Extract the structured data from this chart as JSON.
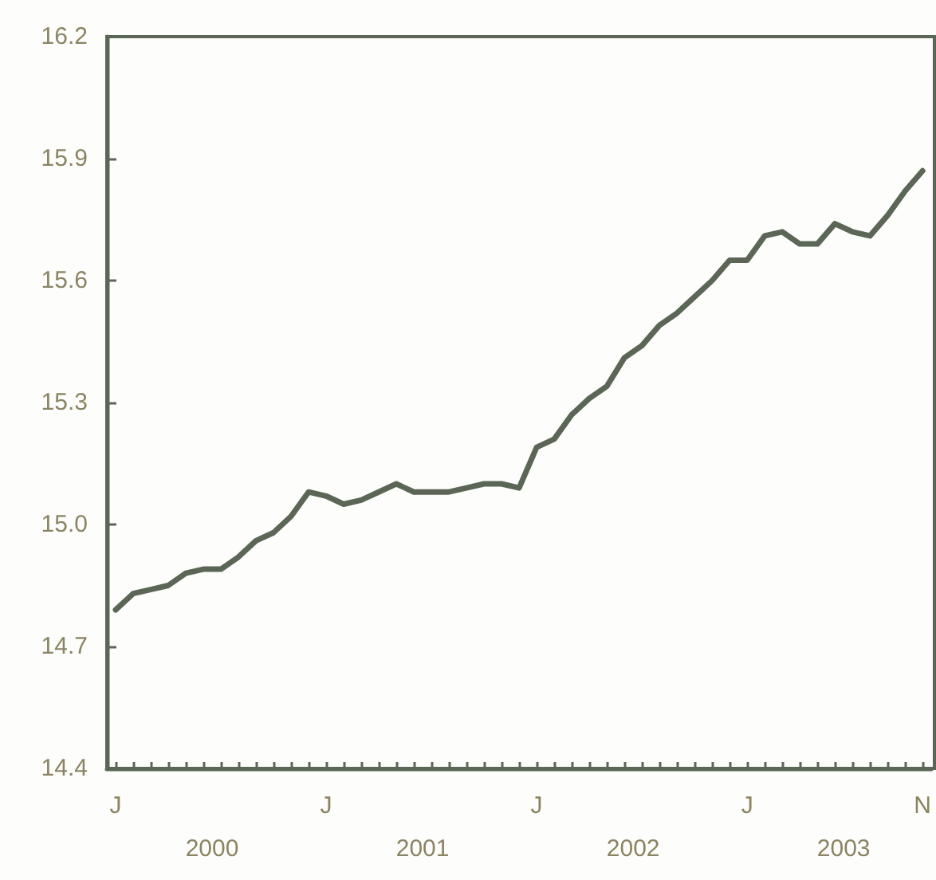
{
  "chart_data": {
    "type": "line",
    "categories": [
      "J",
      null,
      null,
      null,
      null,
      null,
      null,
      null,
      null,
      null,
      null,
      null,
      "J",
      null,
      null,
      null,
      null,
      null,
      null,
      null,
      null,
      null,
      null,
      null,
      "J",
      null,
      null,
      null,
      null,
      null,
      null,
      null,
      null,
      null,
      null,
      null,
      "J",
      null,
      null,
      null,
      null,
      null,
      null,
      null,
      null,
      null,
      "N"
    ],
    "series": [
      {
        "color": "#5b6657",
        "values": [
          14.79,
          14.83,
          14.84,
          14.85,
          14.88,
          14.89,
          14.89,
          14.92,
          14.96,
          14.98,
          15.02,
          15.08,
          15.07,
          15.05,
          15.06,
          15.08,
          15.1,
          15.08,
          15.08,
          15.08,
          15.09,
          15.1,
          15.1,
          15.09,
          15.19,
          15.21,
          15.27,
          15.31,
          15.34,
          15.41,
          15.44,
          15.49,
          15.52,
          15.56,
          15.6,
          15.65,
          15.65,
          15.71,
          15.72,
          15.69,
          15.69,
          15.74,
          15.72,
          15.71,
          15.76,
          15.82,
          15.87
        ]
      }
    ],
    "ylim": [
      14.4,
      16.2
    ],
    "yticks": [
      14.4,
      14.7,
      {
        "value": 15,
        "label": "15.0"
      },
      15.3,
      15.6,
      15.9,
      16.2
    ],
    "annotations": [
      "2000",
      "2001",
      "2002",
      "2003"
    ],
    "grid": false,
    "marker": "none",
    "line_style": "solid"
  }
}
